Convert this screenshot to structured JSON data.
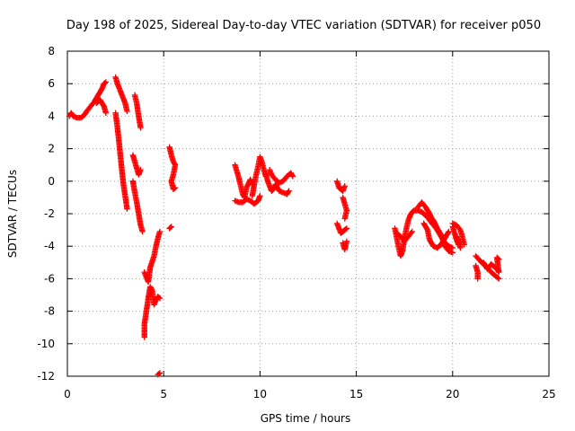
{
  "chart_data": {
    "type": "scatter",
    "title": "Day 198 of 2025, Sidereal Day-to-day VTEC variation (SDTVAR) for receiver p050",
    "xlabel": "GPS time / hours",
    "ylabel": "SDTVAR / TECUs",
    "xlim": [
      0,
      25
    ],
    "ylim": [
      -12,
      8
    ],
    "xticks": [
      0,
      5,
      10,
      15,
      20,
      25
    ],
    "yticks": [
      -12,
      -10,
      -8,
      -6,
      -4,
      -2,
      0,
      2,
      4,
      6,
      8
    ],
    "grid": true,
    "marker": "+",
    "color": "#ff0000",
    "series": [
      {
        "name": "SDTVAR",
        "tracks": [
          [
            [
              0.1,
              4.0
            ],
            [
              0.2,
              4.2
            ],
            [
              0.3,
              4.0
            ],
            [
              0.5,
              3.9
            ],
            [
              0.7,
              3.9
            ],
            [
              0.9,
              4.1
            ],
            [
              1.0,
              4.3
            ],
            [
              1.2,
              4.6
            ],
            [
              1.4,
              4.9
            ],
            [
              1.6,
              5.3
            ],
            [
              1.8,
              5.7
            ],
            [
              1.9,
              6.0
            ],
            [
              2.0,
              6.1
            ]
          ],
          [
            [
              1.5,
              4.8
            ],
            [
              1.7,
              5.0
            ],
            [
              1.9,
              4.6
            ],
            [
              2.0,
              4.2
            ]
          ],
          [
            [
              2.5,
              6.4
            ],
            [
              2.6,
              6.0
            ],
            [
              2.8,
              5.4
            ],
            [
              3.0,
              4.8
            ],
            [
              3.1,
              4.3
            ]
          ],
          [
            [
              2.5,
              4.2
            ],
            [
              2.6,
              3.3
            ],
            [
              2.7,
              2.2
            ],
            [
              2.8,
              1.0
            ],
            [
              2.9,
              -0.1
            ],
            [
              3.0,
              -0.9
            ],
            [
              3.1,
              -1.7
            ]
          ],
          [
            [
              3.5,
              5.3
            ],
            [
              3.6,
              4.8
            ],
            [
              3.7,
              4.0
            ],
            [
              3.8,
              3.3
            ]
          ],
          [
            [
              3.4,
              1.6
            ],
            [
              3.5,
              1.2
            ],
            [
              3.6,
              0.8
            ],
            [
              3.7,
              0.4
            ],
            [
              3.8,
              0.7
            ]
          ],
          [
            [
              3.4,
              0.0
            ],
            [
              3.5,
              -0.7
            ],
            [
              3.6,
              -1.3
            ],
            [
              3.7,
              -2.0
            ],
            [
              3.8,
              -2.7
            ],
            [
              3.9,
              -3.1
            ]
          ],
          [
            [
              4.0,
              -5.6
            ],
            [
              4.1,
              -5.9
            ],
            [
              4.2,
              -6.2
            ],
            [
              4.3,
              -5.3
            ],
            [
              4.5,
              -4.6
            ],
            [
              4.6,
              -4.0
            ],
            [
              4.7,
              -3.5
            ],
            [
              4.8,
              -3.1
            ]
          ],
          [
            [
              4.0,
              -9.6
            ],
            [
              4.0,
              -8.8
            ],
            [
              4.1,
              -8.0
            ],
            [
              4.2,
              -7.2
            ],
            [
              4.3,
              -6.5
            ],
            [
              4.4,
              -6.7
            ],
            [
              4.5,
              -7.6
            ],
            [
              4.6,
              -7.3
            ],
            [
              4.7,
              -7.1
            ],
            [
              4.8,
              -7.2
            ]
          ],
          [
            [
              4.7,
              -11.9
            ],
            [
              4.8,
              -11.8
            ]
          ],
          [
            [
              5.3,
              2.1
            ],
            [
              5.4,
              1.6
            ],
            [
              5.5,
              1.2
            ],
            [
              5.6,
              1.0
            ],
            [
              5.5,
              0.4
            ],
            [
              5.4,
              0.0
            ],
            [
              5.5,
              -0.5
            ],
            [
              5.6,
              -0.4
            ]
          ],
          [
            [
              5.3,
              -2.9
            ],
            [
              5.4,
              -2.8
            ]
          ],
          [
            [
              8.7,
              1.0
            ],
            [
              8.8,
              0.6
            ],
            [
              8.9,
              0.2
            ],
            [
              9.0,
              -0.3
            ],
            [
              9.1,
              -0.8
            ],
            [
              9.2,
              -1.0
            ],
            [
              9.3,
              -0.4
            ],
            [
              9.5,
              0.1
            ],
            [
              9.6,
              -0.2
            ]
          ],
          [
            [
              8.7,
              -1.2
            ],
            [
              8.9,
              -1.3
            ],
            [
              9.1,
              -1.3
            ],
            [
              9.3,
              -1.1
            ],
            [
              9.5,
              -1.2
            ],
            [
              9.7,
              -1.4
            ],
            [
              9.9,
              -1.2
            ],
            [
              10.0,
              -0.9
            ]
          ],
          [
            [
              9.6,
              -0.9
            ],
            [
              9.7,
              -0.2
            ],
            [
              9.8,
              0.4
            ],
            [
              9.9,
              0.9
            ],
            [
              10.0,
              1.5
            ],
            [
              10.1,
              1.2
            ],
            [
              10.2,
              0.7
            ],
            [
              10.3,
              0.3
            ]
          ],
          [
            [
              10.3,
              0.5
            ],
            [
              10.4,
              0.0
            ],
            [
              10.5,
              -0.3
            ],
            [
              10.6,
              -0.6
            ],
            [
              10.7,
              -0.5
            ],
            [
              10.8,
              -0.2
            ],
            [
              11.0,
              -0.6
            ],
            [
              11.2,
              -0.7
            ],
            [
              11.4,
              -0.8
            ],
            [
              11.5,
              -0.6
            ]
          ],
          [
            [
              10.5,
              0.7
            ],
            [
              10.6,
              0.4
            ],
            [
              10.8,
              0.1
            ],
            [
              11.0,
              -0.1
            ],
            [
              11.2,
              0.0
            ],
            [
              11.4,
              0.3
            ],
            [
              11.6,
              0.5
            ],
            [
              11.7,
              0.3
            ]
          ],
          [
            [
              14.0,
              0.0
            ],
            [
              14.1,
              -0.4
            ],
            [
              14.3,
              -0.6
            ],
            [
              14.4,
              -0.3
            ]
          ],
          [
            [
              14.3,
              -1.0
            ],
            [
              14.4,
              -1.4
            ],
            [
              14.5,
              -1.8
            ],
            [
              14.4,
              -2.3
            ]
          ],
          [
            [
              14.0,
              -2.6
            ],
            [
              14.1,
              -2.9
            ],
            [
              14.2,
              -3.2
            ],
            [
              14.5,
              -2.9
            ]
          ],
          [
            [
              14.3,
              -3.8
            ],
            [
              14.4,
              -4.2
            ],
            [
              14.5,
              -3.7
            ]
          ],
          [
            [
              17.0,
              -2.9
            ],
            [
              17.1,
              -3.5
            ],
            [
              17.2,
              -4.1
            ],
            [
              17.3,
              -4.6
            ],
            [
              17.4,
              -4.3
            ],
            [
              17.5,
              -3.5
            ],
            [
              17.6,
              -2.9
            ],
            [
              17.7,
              -2.4
            ],
            [
              17.8,
              -2.1
            ],
            [
              17.9,
              -1.9
            ],
            [
              18.0,
              -1.8
            ],
            [
              18.2,
              -1.8
            ],
            [
              18.4,
              -1.9
            ],
            [
              18.6,
              -2.1
            ],
            [
              18.8,
              -2.4
            ],
            [
              19.0,
              -2.7
            ],
            [
              19.2,
              -3.0
            ],
            [
              19.4,
              -3.4
            ],
            [
              19.6,
              -3.8
            ],
            [
              19.8,
              -4.0
            ],
            [
              20.0,
              -4.1
            ]
          ],
          [
            [
              17.1,
              -3.2
            ],
            [
              17.3,
              -3.4
            ],
            [
              17.5,
              -3.7
            ],
            [
              17.7,
              -3.4
            ],
            [
              17.9,
              -3.1
            ]
          ],
          [
            [
              18.2,
              -1.6
            ],
            [
              18.4,
              -1.3
            ],
            [
              18.6,
              -1.6
            ],
            [
              18.8,
              -2.0
            ],
            [
              19.0,
              -2.5
            ]
          ],
          [
            [
              18.5,
              -2.6
            ],
            [
              18.7,
              -3.0
            ],
            [
              18.8,
              -3.6
            ],
            [
              19.0,
              -4.0
            ],
            [
              19.2,
              -4.1
            ],
            [
              19.4,
              -3.9
            ],
            [
              19.6,
              -3.5
            ],
            [
              19.8,
              -3.1
            ]
          ],
          [
            [
              18.8,
              -2.2
            ],
            [
              19.0,
              -2.4
            ],
            [
              19.2,
              -2.9
            ],
            [
              19.4,
              -3.3
            ],
            [
              19.6,
              -4.0
            ],
            [
              19.8,
              -4.3
            ],
            [
              20.0,
              -4.4
            ]
          ],
          [
            [
              20.0,
              -2.6
            ],
            [
              20.2,
              -2.7
            ],
            [
              20.4,
              -3.0
            ],
            [
              20.5,
              -3.4
            ],
            [
              20.6,
              -3.9
            ]
          ],
          [
            [
              20.2,
              -3.4
            ],
            [
              20.3,
              -3.7
            ],
            [
              20.4,
              -4.1
            ]
          ],
          [
            [
              20.0,
              -2.8
            ],
            [
              20.1,
              -3.2
            ],
            [
              20.2,
              -3.6
            ],
            [
              20.3,
              -3.9
            ]
          ],
          [
            [
              21.2,
              -4.6
            ],
            [
              21.5,
              -5.0
            ],
            [
              21.8,
              -5.3
            ],
            [
              22.0,
              -5.6
            ],
            [
              22.2,
              -5.8
            ],
            [
              22.4,
              -6.0
            ]
          ],
          [
            [
              21.2,
              -5.2
            ],
            [
              21.3,
              -5.6
            ],
            [
              21.3,
              -6.0
            ]
          ],
          [
            [
              21.6,
              -5.0
            ],
            [
              21.8,
              -5.4
            ],
            [
              22.0,
              -5.1
            ],
            [
              22.1,
              -5.2
            ],
            [
              22.3,
              -5.4
            ],
            [
              22.4,
              -5.6
            ],
            [
              22.3,
              -4.7
            ],
            [
              22.4,
              -4.8
            ]
          ]
        ]
      }
    ]
  }
}
